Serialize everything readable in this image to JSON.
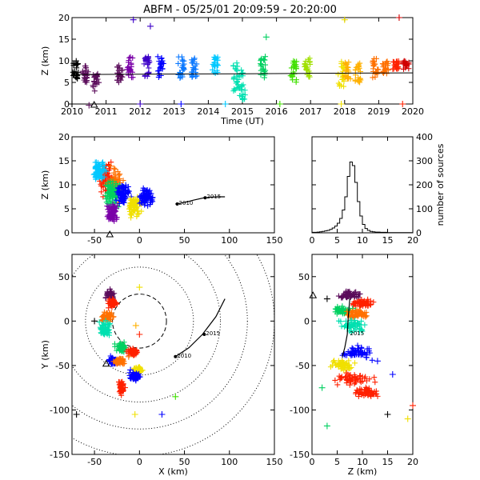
{
  "title": "ABFM - 05/25/01 20:09:59 - 20:20:00",
  "colors": {
    "palette": [
      "#000000",
      "#5b0d5b",
      "#7a00a8",
      "#3c00c8",
      "#0000ff",
      "#0a78ff",
      "#00c8ff",
      "#00e0b0",
      "#00d060",
      "#40e000",
      "#a0e000",
      "#f0e000",
      "#ffb000",
      "#ff7000",
      "#ff2000",
      "#d00000"
    ]
  },
  "chart_data": [
    {
      "id": "time-height",
      "type": "scatter",
      "xlabel": "Time (UT)",
      "ylabel": "Z (km)",
      "xlim": [
        2010,
        2020
      ],
      "ylim": [
        0,
        20
      ],
      "xticks": [
        "2010",
        "2011",
        "2012",
        "2013",
        "2014",
        "2015",
        "2016",
        "2017",
        "2018",
        "2019",
        "2020"
      ],
      "yticks": [
        "0",
        "5",
        "10",
        "15",
        "20"
      ],
      "trend_line": {
        "x": [
          2010,
          2012,
          2015,
          2017,
          2020
        ],
        "y": [
          6.8,
          6.9,
          7.0,
          7.1,
          7.2
        ]
      },
      "triangle_marker": {
        "x": 2010.65,
        "y": -0.2
      },
      "clusters": [
        {
          "x": 2010.1,
          "ymin": 5,
          "ymax": 10,
          "color_index": 0
        },
        {
          "x": 2010.4,
          "ymin": 5,
          "ymax": 9,
          "color_index": 1
        },
        {
          "x": 2010.7,
          "ymin": 3,
          "ymax": 7,
          "color_index": 1
        },
        {
          "x": 2011.4,
          "ymin": 5,
          "ymax": 9,
          "color_index": 1
        },
        {
          "x": 2011.7,
          "ymin": 6,
          "ymax": 11,
          "color_index": 2
        },
        {
          "x": 2012.2,
          "ymin": 6,
          "ymax": 11,
          "color_index": 3
        },
        {
          "x": 2012.6,
          "ymin": 6,
          "ymax": 11,
          "color_index": 4
        },
        {
          "x": 2013.2,
          "ymin": 6,
          "ymax": 11,
          "color_index": 5
        },
        {
          "x": 2013.6,
          "ymin": 6,
          "ymax": 11,
          "color_index": 5
        },
        {
          "x": 2014.2,
          "ymin": 7,
          "ymax": 11,
          "color_index": 6
        },
        {
          "x": 2014.8,
          "ymin": 3,
          "ymax": 10,
          "color_index": 7
        },
        {
          "x": 2015.0,
          "ymin": 1,
          "ymax": 8,
          "color_index": 7
        },
        {
          "x": 2015.6,
          "ymin": 6,
          "ymax": 11,
          "color_index": 8
        },
        {
          "x": 2016.5,
          "ymin": 5,
          "ymax": 10,
          "color_index": 9
        },
        {
          "x": 2016.9,
          "ymin": 6,
          "ymax": 11,
          "color_index": 10
        },
        {
          "x": 2017.9,
          "ymin": 4,
          "ymax": 10,
          "color_index": 11
        },
        {
          "x": 2018.1,
          "ymin": 5,
          "ymax": 10,
          "color_index": 12
        },
        {
          "x": 2018.4,
          "ymin": 5,
          "ymax": 10,
          "color_index": 12
        },
        {
          "x": 2018.9,
          "ymin": 6,
          "ymax": 11,
          "color_index": 13
        },
        {
          "x": 2019.2,
          "ymin": 7,
          "ymax": 10,
          "color_index": 13
        },
        {
          "x": 2019.5,
          "ymin": 8,
          "ymax": 10,
          "color_index": 14
        },
        {
          "x": 2019.8,
          "ymin": 8,
          "ymax": 10,
          "color_index": 15
        }
      ],
      "outliers": [
        {
          "x": 2010.0,
          "y": 0,
          "color_index": 0
        },
        {
          "x": 2010.5,
          "y": -0.3,
          "color_index": 1
        },
        {
          "x": 2011.8,
          "y": 19.5,
          "color_index": 3
        },
        {
          "x": 2012.3,
          "y": 18,
          "color_index": 3
        },
        {
          "x": 2012.0,
          "y": 0,
          "color_index": 3
        },
        {
          "x": 2013.2,
          "y": 0,
          "color_index": 4
        },
        {
          "x": 2014.5,
          "y": 0,
          "color_index": 6
        },
        {
          "x": 2015.7,
          "y": 15.5,
          "color_index": 8
        },
        {
          "x": 2016.1,
          "y": 0,
          "color_index": 9
        },
        {
          "x": 2018.0,
          "y": 19.5,
          "color_index": 11
        },
        {
          "x": 2017.9,
          "y": 0,
          "color_index": 11
        },
        {
          "x": 2019.6,
          "y": 20,
          "color_index": 15
        },
        {
          "x": 2019.7,
          "y": 0,
          "color_index": 14
        }
      ]
    },
    {
      "id": "xz-projection",
      "type": "scatter",
      "xlabel": "",
      "ylabel": "Z (km)",
      "xlim": [
        -75,
        150
      ],
      "ylim": [
        0,
        20
      ],
      "xticks": [
        "-50",
        "0",
        "50",
        "100",
        "150"
      ],
      "yticks": [
        "0",
        "5",
        "10",
        "15",
        "20"
      ],
      "track": {
        "x": [
          40,
          50,
          60,
          72,
          85,
          95
        ],
        "z": [
          6.0,
          6.3,
          6.8,
          7.3,
          7.5,
          7.5
        ],
        "labels": [
          {
            "text": "2010",
            "x": 42,
            "z": 6.0
          },
          {
            "text": "2015",
            "x": 73,
            "z": 7.3
          }
        ]
      },
      "triangle_marker": {
        "x": -33,
        "z": -0.3
      },
      "clusters": [
        {
          "x": -36,
          "z": 11,
          "sx": 8,
          "sz": 3,
          "color_index": 14
        },
        {
          "x": -26,
          "z": 10,
          "sx": 8,
          "sz": 3,
          "color_index": 13
        },
        {
          "x": -32,
          "z": 8,
          "sx": 8,
          "sz": 2.5,
          "color_index": 8
        },
        {
          "x": -18,
          "z": 8,
          "sx": 7,
          "sz": 2,
          "color_index": 4
        },
        {
          "x": -6,
          "z": 5.5,
          "sx": 7,
          "sz": 2,
          "color_index": 11
        },
        {
          "x": 8,
          "z": 7.5,
          "sx": 6,
          "sz": 2,
          "color_index": 4
        },
        {
          "x": -30,
          "z": 4,
          "sx": 6,
          "sz": 2,
          "color_index": 2
        },
        {
          "x": -45,
          "z": 13,
          "sx": 6,
          "sz": 2,
          "color_index": 6
        }
      ]
    },
    {
      "id": "height-histogram",
      "type": "bar",
      "xlabel": "",
      "ylabel": "number of sources",
      "xlim": [
        0,
        20
      ],
      "ylim": [
        0,
        400
      ],
      "xticks": [
        "0",
        "5",
        "10",
        "15",
        "20"
      ],
      "yticks": [
        "0",
        "100",
        "200",
        "300",
        "400"
      ],
      "bins_x": [
        0,
        0.5,
        1,
        1.5,
        2,
        2.5,
        3,
        3.5,
        4,
        4.5,
        5,
        5.5,
        6,
        6.5,
        7,
        7.5,
        8,
        8.5,
        9,
        9.5,
        10,
        10.5,
        11,
        11.5,
        12,
        12.5,
        13,
        13.5,
        14,
        14.5,
        15,
        15.5,
        16,
        16.5,
        17,
        17.5,
        18,
        18.5,
        19,
        19.5
      ],
      "values": [
        2,
        2,
        3,
        4,
        6,
        8,
        10,
        14,
        20,
        28,
        40,
        60,
        95,
        150,
        235,
        295,
        280,
        210,
        130,
        70,
        35,
        18,
        10,
        6,
        4,
        3,
        3,
        2,
        2,
        2,
        1,
        1,
        1,
        1,
        1,
        1,
        1,
        1,
        1,
        1
      ]
    },
    {
      "id": "plan-view",
      "type": "scatter",
      "xlabel": "X (km)",
      "ylabel": "Y (km)",
      "xlim": [
        -75,
        150
      ],
      "ylim": [
        -150,
        75
      ],
      "xticks": [
        "-50",
        "0",
        "50",
        "100",
        "150"
      ],
      "yticks": [
        "-150",
        "-100",
        "-50",
        "0",
        "50"
      ],
      "range_rings_km": [
        30,
        60,
        90,
        120,
        150
      ],
      "track": {
        "x": [
          40,
          55,
          70,
          85,
          95
        ],
        "y": [
          -40,
          -30,
          -15,
          5,
          25
        ],
        "labels": [
          {
            "text": "2010",
            "x": 40,
            "y": -40
          },
          {
            "text": "2015",
            "x": 72,
            "y": -15
          }
        ]
      },
      "triangle_marker": {
        "x": -37,
        "y": -49
      },
      "clusters": [
        {
          "x": -33,
          "y": 30,
          "sx": 5,
          "sy": 4,
          "color_index": 1
        },
        {
          "x": -30,
          "y": 20,
          "sx": 5,
          "sy": 4,
          "color_index": 14
        },
        {
          "x": -35,
          "y": 5,
          "sx": 6,
          "sy": 5,
          "color_index": 13
        },
        {
          "x": -38,
          "y": -8,
          "sx": 6,
          "sy": 8,
          "color_index": 7
        },
        {
          "x": -20,
          "y": -30,
          "sx": 6,
          "sy": 5,
          "color_index": 8
        },
        {
          "x": -8,
          "y": -35,
          "sx": 5,
          "sy": 4,
          "color_index": 14
        },
        {
          "x": -30,
          "y": -45,
          "sx": 6,
          "sy": 4,
          "color_index": 4
        },
        {
          "x": -22,
          "y": -45,
          "sx": 5,
          "sy": 3,
          "color_index": 13
        },
        {
          "x": -2,
          "y": -55,
          "sx": 5,
          "sy": 4,
          "color_index": 11
        },
        {
          "x": -5,
          "y": -62,
          "sx": 6,
          "sy": 4,
          "color_index": 4
        },
        {
          "x": -20,
          "y": -75,
          "sx": 3,
          "sy": 8,
          "color_index": 14
        }
      ]
    },
    {
      "id": "zy-projection",
      "type": "scatter",
      "xlabel": "Z (km)",
      "ylabel": "",
      "xlim": [
        0,
        20
      ],
      "ylim": [
        -150,
        75
      ],
      "xticks": [
        "0",
        "5",
        "10",
        "15",
        "20"
      ],
      "yticks": [
        "-150",
        "-100",
        "-50",
        "0",
        "50"
      ],
      "track": {
        "z": [
          6,
          6.5,
          7,
          7.2,
          7.5
        ],
        "y": [
          -40,
          -30,
          -15,
          5,
          25
        ],
        "labels": [
          {
            "text": "2015",
            "z": 7.2,
            "y": -15
          }
        ]
      },
      "triangle_marker": {
        "z": 0.2,
        "y": 28
      },
      "clusters": [
        {
          "z": 7.5,
          "y": 30,
          "sz": 2,
          "sy": 4,
          "color_index": 1
        },
        {
          "z": 10,
          "y": 20,
          "sz": 2,
          "sy": 4,
          "color_index": 14
        },
        {
          "z": 6,
          "y": 12,
          "sz": 2,
          "sy": 4,
          "color_index": 8
        },
        {
          "z": 9,
          "y": 8,
          "sz": 2,
          "sy": 4,
          "color_index": 13
        },
        {
          "z": 8,
          "y": -5,
          "sz": 2.5,
          "sy": 8,
          "color_index": 7
        },
        {
          "z": 9,
          "y": -35,
          "sz": 2.5,
          "sy": 6,
          "color_index": 4
        },
        {
          "z": 6,
          "y": -50,
          "sz": 2,
          "sy": 5,
          "color_index": 11
        },
        {
          "z": 8,
          "y": -65,
          "sz": 3,
          "sy": 6,
          "color_index": 14
        },
        {
          "z": 11,
          "y": -80,
          "sz": 2,
          "sy": 5,
          "color_index": 14
        }
      ]
    }
  ]
}
